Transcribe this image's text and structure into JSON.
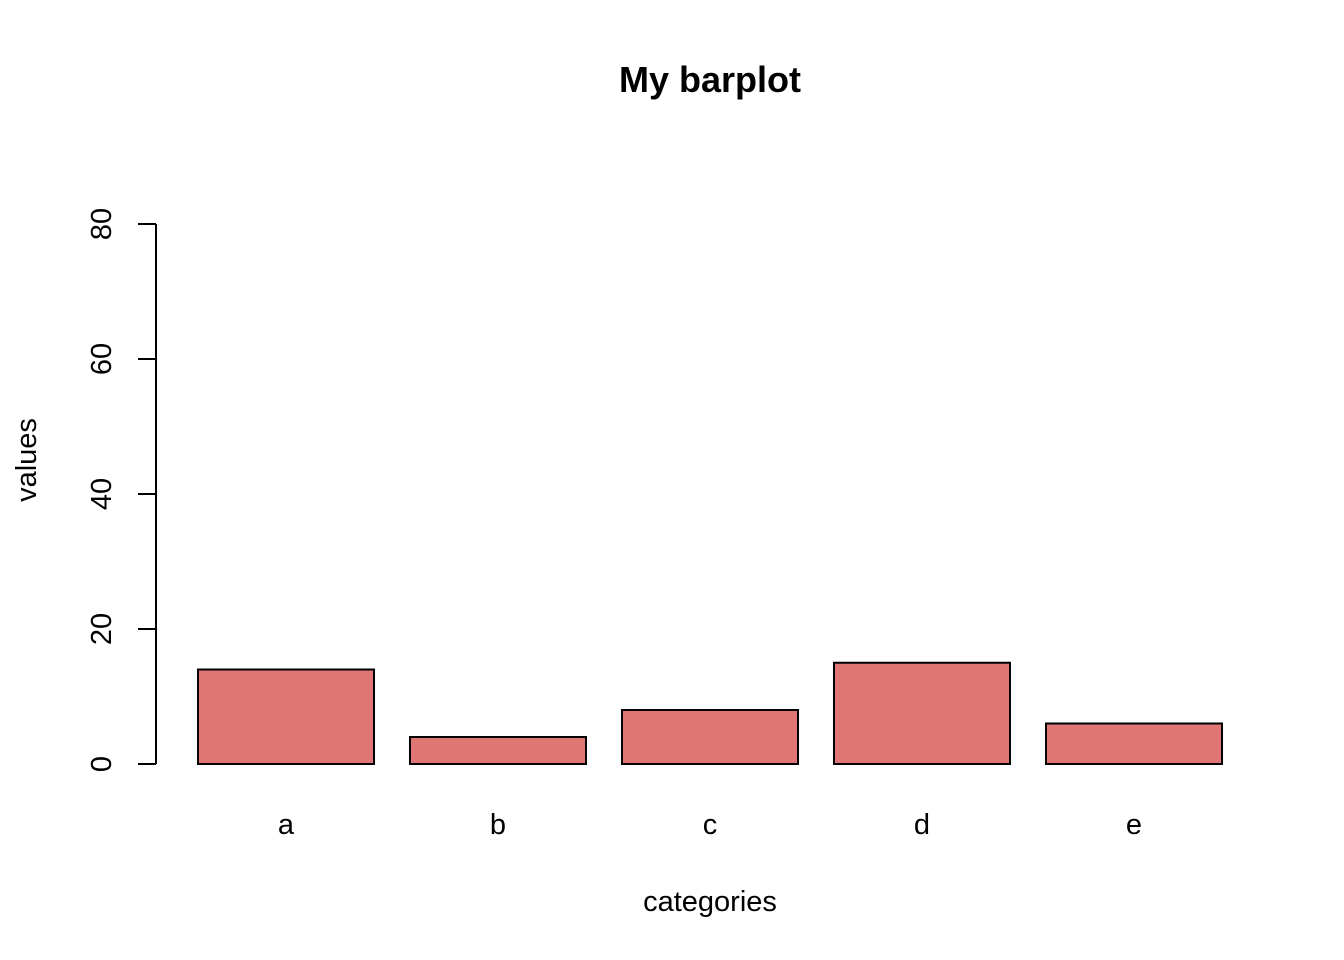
{
  "chart_data": {
    "type": "bar",
    "title": "My barplot",
    "xlabel": "categories",
    "ylabel": "values",
    "categories": [
      "a",
      "b",
      "c",
      "d",
      "e"
    ],
    "values": [
      14,
      4,
      8,
      15,
      6
    ],
    "ylim": [
      0,
      80
    ],
    "yticks": [
      0,
      20,
      40,
      60,
      80
    ],
    "bar_color": "#e07674",
    "grid": false,
    "legend": "none"
  }
}
